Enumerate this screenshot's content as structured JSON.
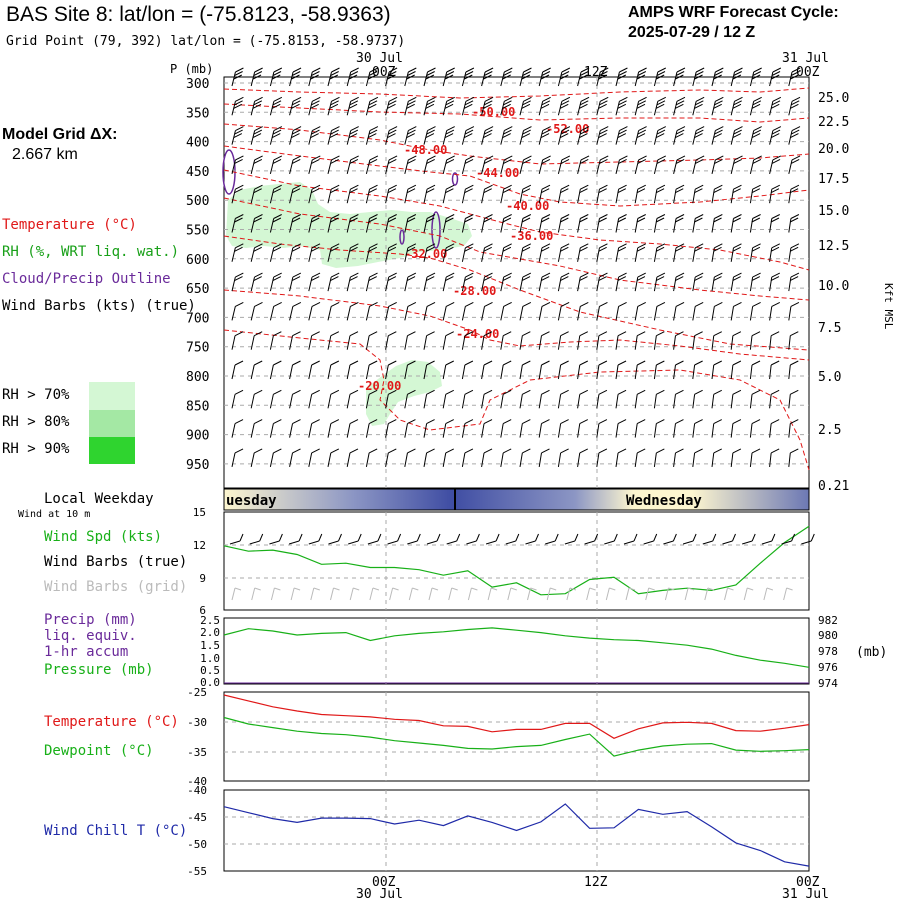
{
  "header": {
    "title": "BAS Site 8:  lat/lon = (-75.8123, -58.9363)",
    "subtitle": "Grid Point (79, 392) lat/lon = (-75.8153, -58.9737)",
    "cycle_line1": "AMPS WRF Forecast Cycle:",
    "cycle_line2": "2025-07-29 / 12  Z"
  },
  "time_axis": {
    "top_dates": [
      "30 Jul",
      "31 Jul"
    ],
    "ticks": [
      "00Z",
      "12Z",
      "00Z"
    ],
    "bottom_dates": [
      "30 Jul",
      "31 Jul"
    ]
  },
  "sidebar": {
    "model_grid_label": "Model Grid ΔX:",
    "model_grid_value": "2.667 km",
    "legend": [
      {
        "label": "Temperature (°C)",
        "color": "#e01818"
      },
      {
        "label": "RH (%, WRT liq. wat.)",
        "color": "#18a018"
      },
      {
        "label": "Cloud/Precip Outline",
        "color": "#6a2a9a"
      },
      {
        "label": "Wind Barbs (kts) (true)",
        "color": "#000000"
      }
    ],
    "rh_legend": [
      {
        "label": "RH > 70%",
        "color": "#d4f7d4"
      },
      {
        "label": "RH > 80%",
        "color": "#a4e8a4"
      },
      {
        "label": "RH > 90%",
        "color": "#2fd42f"
      }
    ]
  },
  "colors": {
    "temp": "#e01818",
    "green": "#18b018",
    "purple": "#6a2a9a",
    "blue": "#1f2aa8",
    "grid": "#aaaaaa"
  },
  "xsection": {
    "pressure_label": "P (mb)",
    "pressure_ticks": [
      "300",
      "350",
      "400",
      "450",
      "500",
      "550",
      "600",
      "650",
      "700",
      "750",
      "800",
      "850",
      "900",
      "950"
    ],
    "height_label": "Kft MSL",
    "height_ticks": [
      "25.0",
      "22.5",
      "20.0",
      "17.5",
      "15.0",
      "12.5",
      "10.0",
      "7.5",
      "5.0",
      "2.5",
      "0.21"
    ],
    "temp_contour_labels": [
      "-50.00",
      "-52.00",
      "-48.00",
      "-44.00",
      "-40.00",
      "-36.00",
      "-32.00",
      "-28.00",
      "-24.00",
      "-20.00"
    ]
  },
  "weekday_bar": {
    "label": "Local Weekday",
    "days": [
      "uesday",
      "Wednesday"
    ]
  },
  "panels": {
    "wind": {
      "note": "Wind at 10 m",
      "labels": [
        "Wind Spd (kts)",
        "Wind Barbs (true)",
        "Wind Barbs (grid)"
      ],
      "yticks": [
        "15",
        "12",
        "9",
        "6"
      ]
    },
    "precip": {
      "labels": [
        "Precip (mm)",
        "liq. equiv.",
        "1-hr accum",
        "Pressure (mb)"
      ],
      "left_ticks": [
        "2.5",
        "2.0",
        "1.5",
        "1.0",
        "0.5",
        "0.0"
      ],
      "right_ticks": [
        "982",
        "980",
        "978",
        "976",
        "974"
      ],
      "right_unit": "(mb)"
    },
    "temp": {
      "labels": [
        "Temperature (°C)",
        "Dewpoint (°C)"
      ],
      "yticks": [
        "-25",
        "-30",
        "-35",
        "-40"
      ]
    },
    "chill": {
      "labels": [
        "Wind Chill T (°C)"
      ],
      "yticks": [
        "-40",
        "-45",
        "-50",
        "-55"
      ]
    }
  },
  "chart_data": [
    {
      "type": "line",
      "name": "wind_speed_10m",
      "ylabel": "Wind Spd (kts)",
      "ylim": [
        6,
        15
      ],
      "x_hours": [
        0,
        2,
        4,
        6,
        8,
        10,
        12,
        14,
        16,
        18,
        20,
        22,
        24,
        26,
        28,
        30,
        32,
        34,
        36,
        38,
        40,
        42,
        44,
        46,
        48
      ],
      "series": [
        {
          "name": "Wind Spd (kts)",
          "values": [
            11.9,
            11.4,
            11.5,
            11.1,
            10.2,
            10.3,
            9.9,
            9.9,
            9.7,
            9.2,
            9.6,
            8.1,
            8.5,
            7.4,
            7.5,
            8.8,
            9.0,
            7.5,
            7.8,
            8.0,
            7.8,
            8.3,
            10.3,
            12.2,
            13.7
          ]
        }
      ]
    },
    {
      "type": "line",
      "name": "surface_pressure",
      "ylabel": "Pressure (mb)",
      "ylim": [
        974,
        982
      ],
      "x_hours": [
        0,
        2,
        4,
        6,
        8,
        10,
        12,
        14,
        16,
        18,
        20,
        22,
        24,
        26,
        28,
        30,
        32,
        34,
        36,
        38,
        40,
        42,
        44,
        46,
        48
      ],
      "series": [
        {
          "name": "Pressure (mb)",
          "values": [
            980.1,
            980.9,
            980.6,
            980.1,
            980.3,
            980.4,
            979.4,
            980.0,
            980.3,
            980.5,
            980.8,
            981.0,
            980.7,
            980.4,
            980.0,
            979.7,
            979.5,
            979.4,
            979.1,
            978.8,
            978.3,
            977.5,
            976.9,
            976.5,
            976.0
          ]
        },
        {
          "name": "Precip (mm)",
          "values": [
            0,
            0,
            0,
            0,
            0,
            0,
            0,
            0,
            0,
            0,
            0,
            0,
            0,
            0,
            0,
            0,
            0,
            0,
            0,
            0,
            0,
            0,
            0,
            0,
            0
          ]
        }
      ]
    },
    {
      "type": "line",
      "name": "temperature_dewpoint",
      "ylabel": "°C",
      "ylim": [
        -40,
        -25
      ],
      "x_hours": [
        0,
        2,
        4,
        6,
        8,
        10,
        12,
        14,
        16,
        18,
        20,
        22,
        24,
        26,
        28,
        30,
        32,
        34,
        36,
        38,
        40,
        42,
        44,
        46,
        48
      ],
      "series": [
        {
          "name": "Temperature (°C)",
          "values": [
            -25.5,
            -26.5,
            -27.5,
            -28.2,
            -28.8,
            -29.0,
            -29.2,
            -29.6,
            -29.8,
            -30.7,
            -30.8,
            -31.7,
            -31.3,
            -31.3,
            -30.3,
            -30.3,
            -32.8,
            -31.2,
            -30.2,
            -30.1,
            -30.3,
            -31.5,
            -31.6,
            -31.1,
            -30.5
          ]
        },
        {
          "name": "Dewpoint (°C)",
          "values": [
            -29.3,
            -30.4,
            -31.0,
            -31.6,
            -32.0,
            -32.2,
            -32.6,
            -33.2,
            -33.6,
            -34.0,
            -34.5,
            -34.6,
            -34.2,
            -34.0,
            -33.0,
            -32.1,
            -35.8,
            -34.8,
            -34.1,
            -33.8,
            -33.7,
            -34.8,
            -35.0,
            -34.9,
            -34.7
          ]
        }
      ]
    },
    {
      "type": "line",
      "name": "wind_chill",
      "ylabel": "Wind Chill T (°C)",
      "ylim": [
        -55,
        -40
      ],
      "x_hours": [
        0,
        2,
        4,
        6,
        8,
        10,
        12,
        14,
        16,
        18,
        20,
        22,
        24,
        26,
        28,
        30,
        32,
        34,
        36,
        38,
        40,
        42,
        44,
        46,
        48
      ],
      "series": [
        {
          "name": "Wind Chill T (°C)",
          "values": [
            -43.1,
            -44.2,
            -45.3,
            -46.0,
            -45.2,
            -45.2,
            -45.3,
            -46.3,
            -45.6,
            -46.6,
            -44.8,
            -46.0,
            -47.5,
            -45.9,
            -42.6,
            -47.1,
            -47.0,
            -43.6,
            -44.5,
            -44.0,
            -46.8,
            -49.8,
            -51.2,
            -53.3,
            -54.1
          ]
        }
      ]
    }
  ]
}
